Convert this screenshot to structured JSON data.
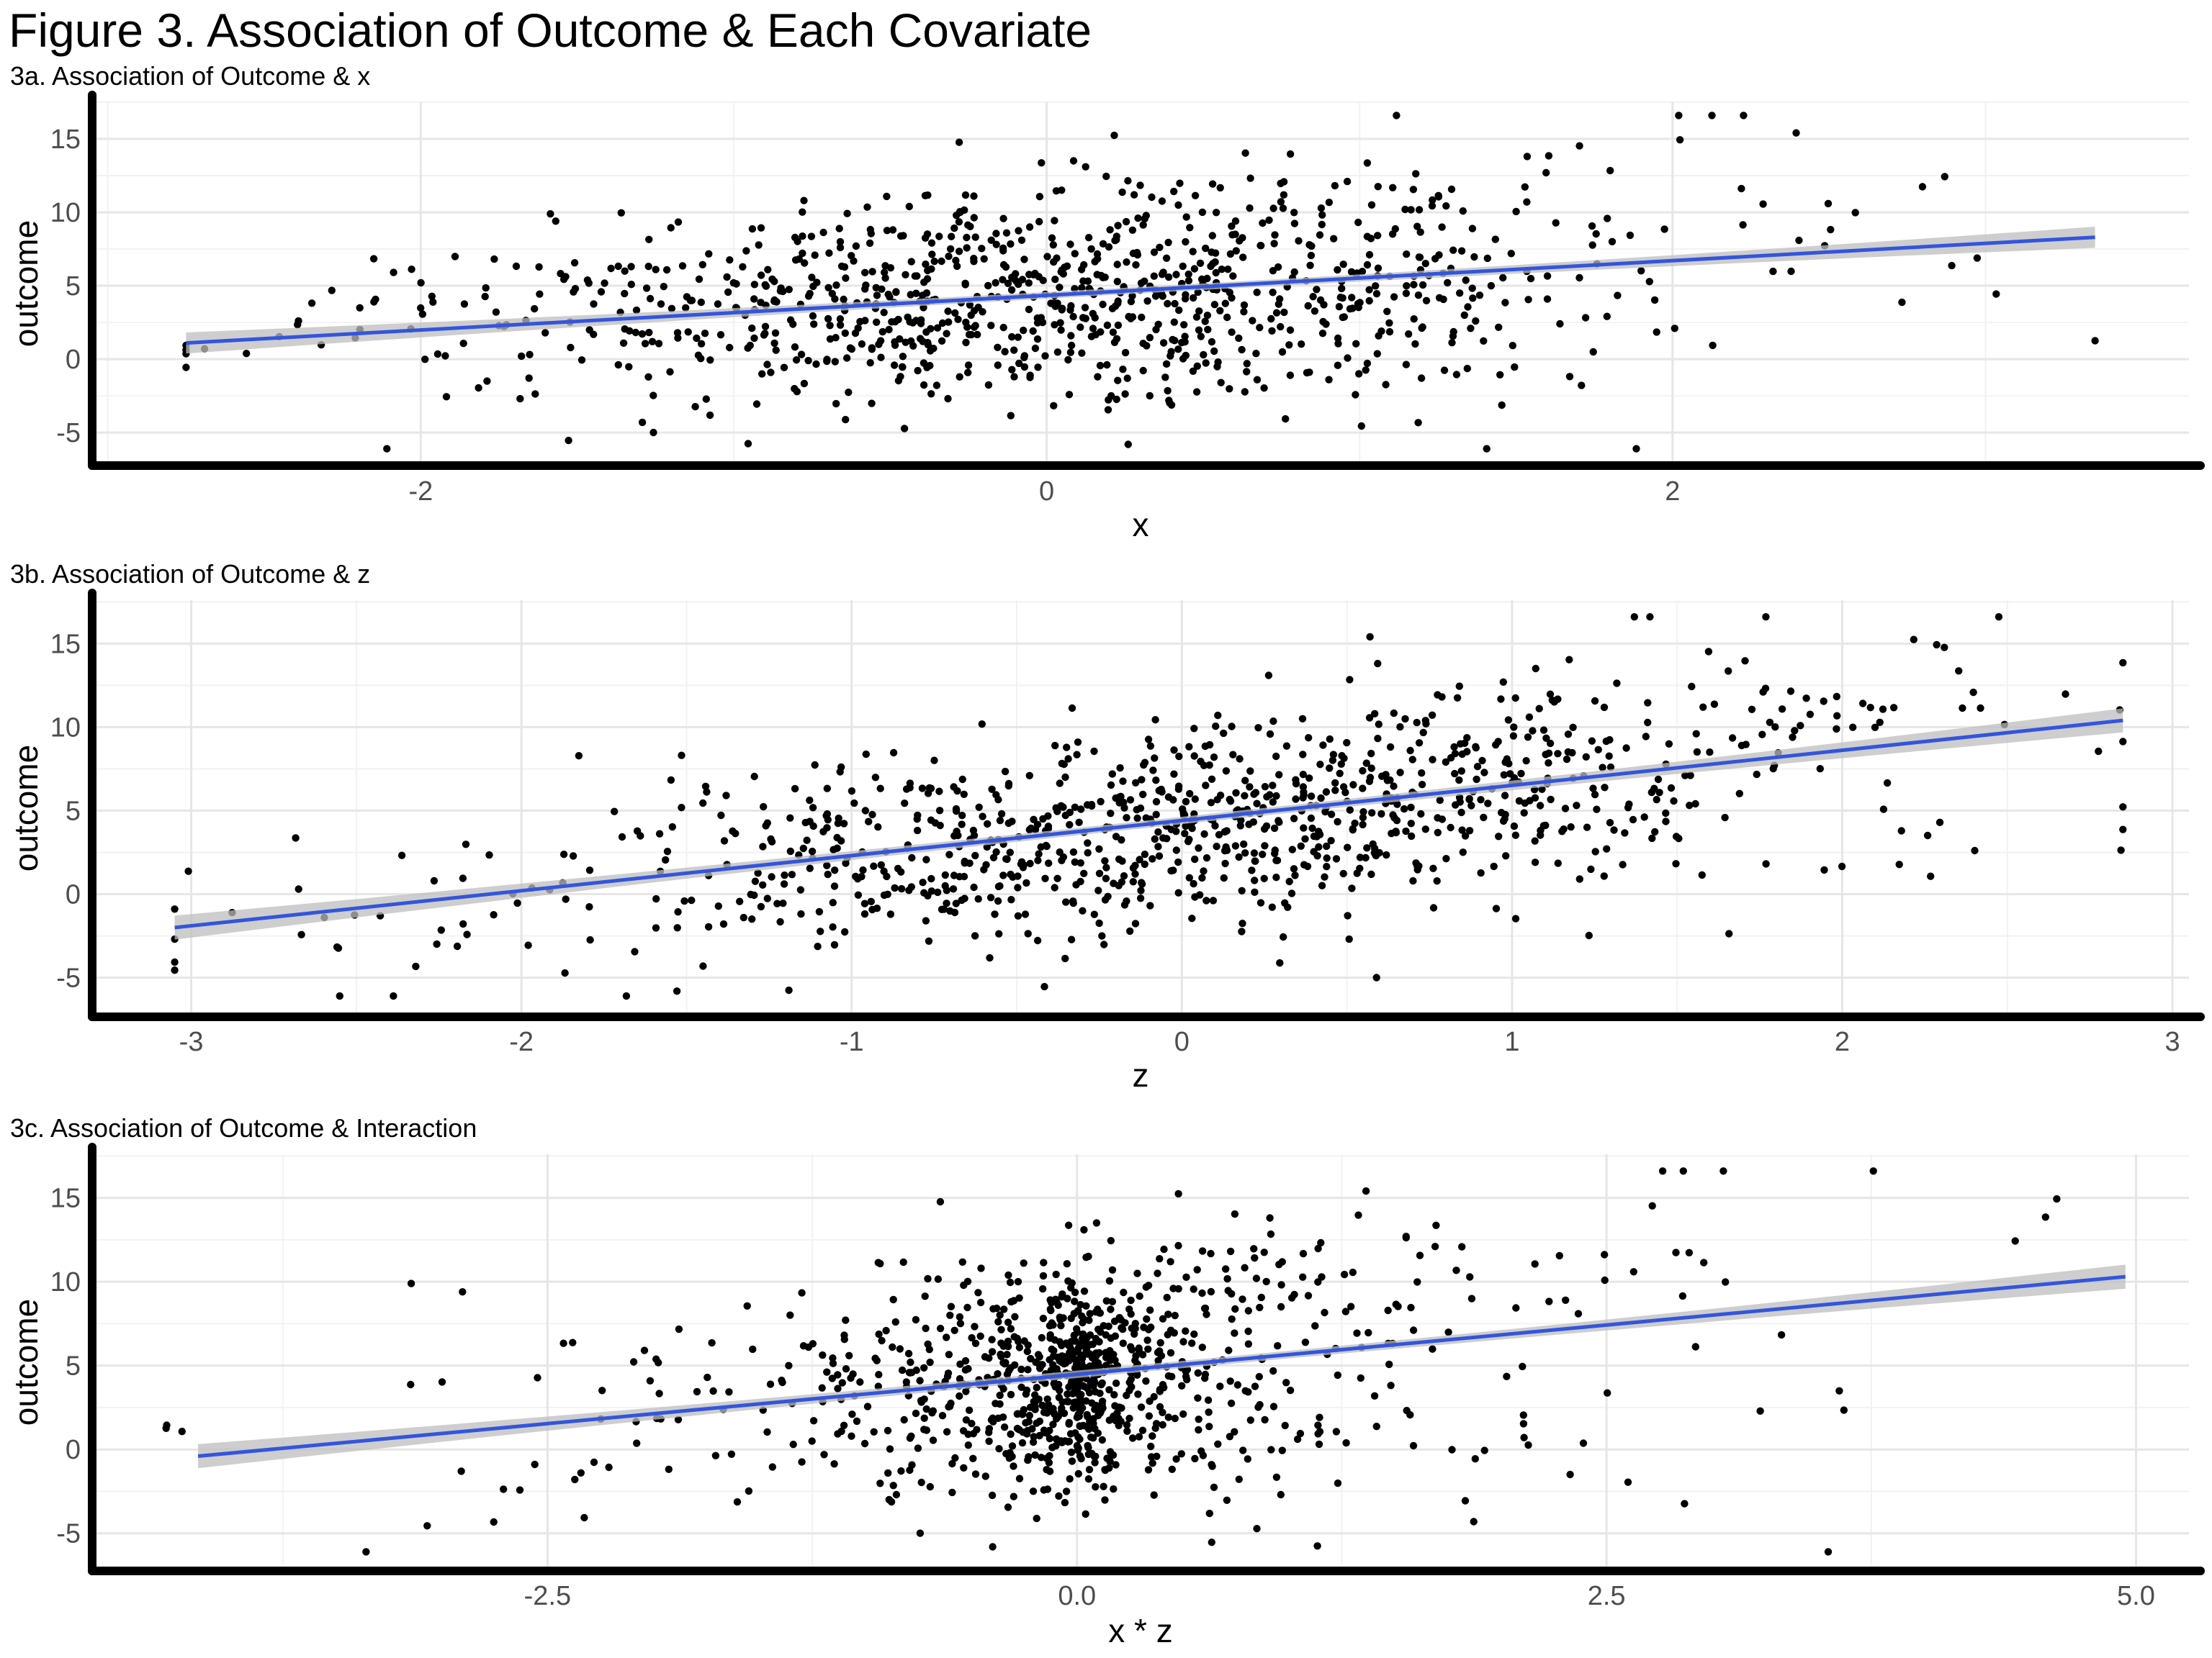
{
  "figure_title": "Figure 3. Association of Outcome & Each Covariate",
  "colors": {
    "points": "#000000",
    "fit_line": "#3355dd",
    "ci_band": "#bdbdbd",
    "grid": "#e6e6e6",
    "axis": "#000000"
  },
  "chart_data": [
    {
      "type": "scatter",
      "title": "3a. Association of Outcome & x",
      "xlabel": "x",
      "ylabel": "outcome",
      "xlim": [
        -3.05,
        3.65
      ],
      "ylim": [
        -7.2,
        17.5
      ],
      "x_ticks": [
        -2,
        0,
        2
      ],
      "x_tick_labels": [
        "-2",
        "0",
        "2"
      ],
      "y_ticks": [
        -5,
        0,
        5,
        10,
        15
      ],
      "y_tick_labels": [
        "-5",
        "0",
        "5",
        "10",
        "15"
      ],
      "grid": true,
      "legend": "none",
      "points": {
        "n": 1000,
        "x_range": [
          -2.75,
          3.35
        ],
        "y_range": [
          -6.1,
          16.6
        ]
      },
      "fit_line": {
        "x": [
          -2.75,
          3.35
        ],
        "y": [
          1.1,
          8.3
        ]
      }
    },
    {
      "type": "scatter",
      "title": "3b. Association of Outcome & z",
      "xlabel": "z",
      "ylabel": "outcome",
      "xlim": [
        -3.3,
        3.05
      ],
      "ylim": [
        -7.3,
        17.6
      ],
      "x_ticks": [
        -3,
        -2,
        -1,
        0,
        1,
        2,
        3
      ],
      "x_tick_labels": [
        "-3",
        "-2",
        "-1",
        "0",
        "1",
        "2",
        "3"
      ],
      "y_ticks": [
        -5,
        0,
        5,
        10,
        15
      ],
      "y_tick_labels": [
        "-5",
        "0",
        "5",
        "10",
        "15"
      ],
      "grid": true,
      "legend": "none",
      "points": {
        "n": 1000,
        "x_range": [
          -3.05,
          2.85
        ],
        "y_range": [
          -6.1,
          16.6
        ]
      },
      "fit_line": {
        "x": [
          -3.05,
          2.85
        ],
        "y": [
          -2.0,
          10.4
        ]
      }
    },
    {
      "type": "scatter",
      "title": "3c. Association of Outcome & Interaction",
      "xlabel": "x * z",
      "ylabel": "outcome",
      "xlim": [
        -4.65,
        5.25
      ],
      "ylim": [
        -7.2,
        17.6
      ],
      "x_ticks": [
        -2.5,
        0.0,
        2.5,
        5.0
      ],
      "x_tick_labels": [
        "-2.5",
        "0.0",
        "2.5",
        "5.0"
      ],
      "y_ticks": [
        -5,
        0,
        5,
        10,
        15
      ],
      "y_tick_labels": [
        "-5",
        "0",
        "5",
        "10",
        "15"
      ],
      "grid": true,
      "legend": "none",
      "points": {
        "n": 1000,
        "x_range": [
          -4.2,
          4.95
        ],
        "y_range": [
          -6.1,
          16.6
        ]
      },
      "fit_line": {
        "x": [
          -4.15,
          4.95
        ],
        "y": [
          -0.4,
          10.3
        ]
      }
    }
  ]
}
